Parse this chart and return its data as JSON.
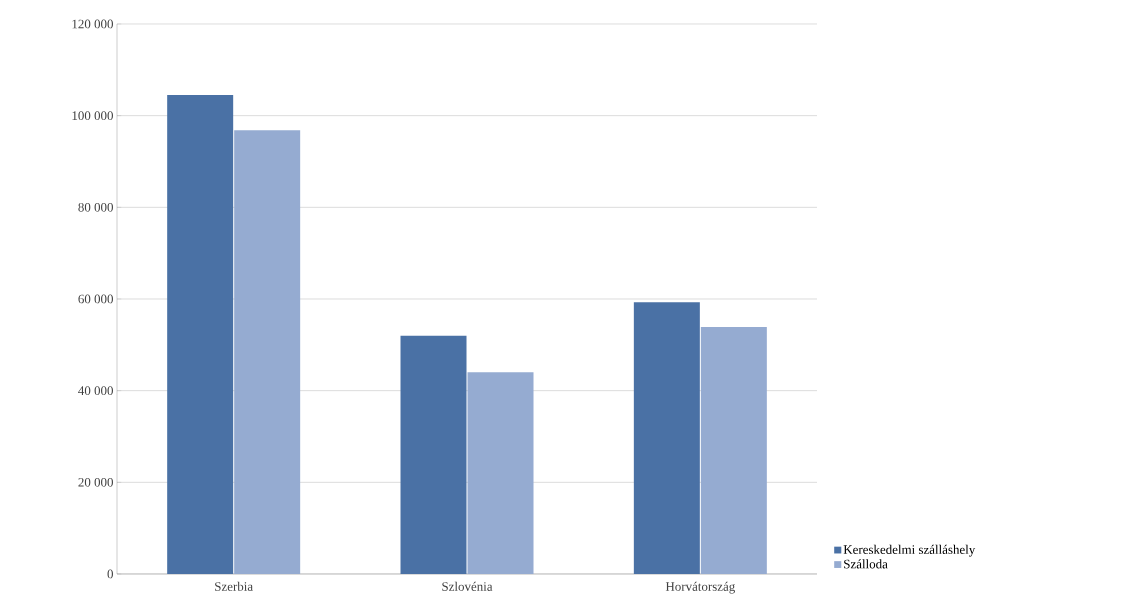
{
  "chart_data": {
    "type": "bar",
    "categories": [
      "Szerbia",
      "Szlovénia",
      "Horvátország"
    ],
    "series": [
      {
        "name": "Kereskedelmi szálláshely",
        "color": "#4a71a5",
        "values": [
          104500,
          52000,
          59300
        ]
      },
      {
        "name": "Szálloda",
        "color": "#95abd1",
        "values": [
          96800,
          44000,
          53900
        ]
      }
    ],
    "ylim": [
      0,
      120000
    ],
    "yticks": [
      {
        "value": 0,
        "label": "0"
      },
      {
        "value": 20000,
        "label": "20 000"
      },
      {
        "value": 40000,
        "label": "40 000"
      },
      {
        "value": 60000,
        "label": "60 000"
      },
      {
        "value": 80000,
        "label": "80 000"
      },
      {
        "value": 100000,
        "label": "100 000"
      },
      {
        "value": 120000,
        "label": "120 000"
      }
    ],
    "grid": "y",
    "legend": "bottom right"
  }
}
